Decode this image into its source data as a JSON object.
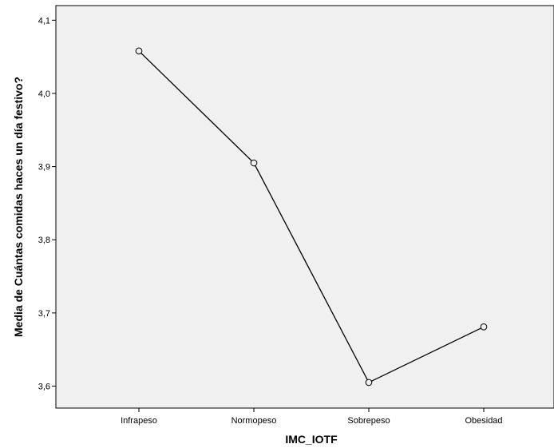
{
  "chart_data": {
    "type": "line",
    "title": "",
    "xlabel": "IMC_IOTF",
    "ylabel": "Media de Cuántas comidas haces un día festivo?",
    "categories": [
      "Infrapeso",
      "Normopeso",
      "Sobrepeso",
      "Obesidad"
    ],
    "series": [
      {
        "values": [
          4.058,
          3.905,
          3.605,
          3.681
        ]
      }
    ],
    "ylim": [
      3.57,
      4.12
    ],
    "yticks": [
      "3,6",
      "3,7",
      "3,8",
      "3,9",
      "4,0",
      "4,1"
    ],
    "ytick_values": [
      3.6,
      3.7,
      3.8,
      3.9,
      4.0,
      4.1
    ],
    "grid": false,
    "marker": "open-circle",
    "colors": {
      "plot_background": "#f0f0f0",
      "line": "#000000",
      "axis": "#000000"
    }
  }
}
